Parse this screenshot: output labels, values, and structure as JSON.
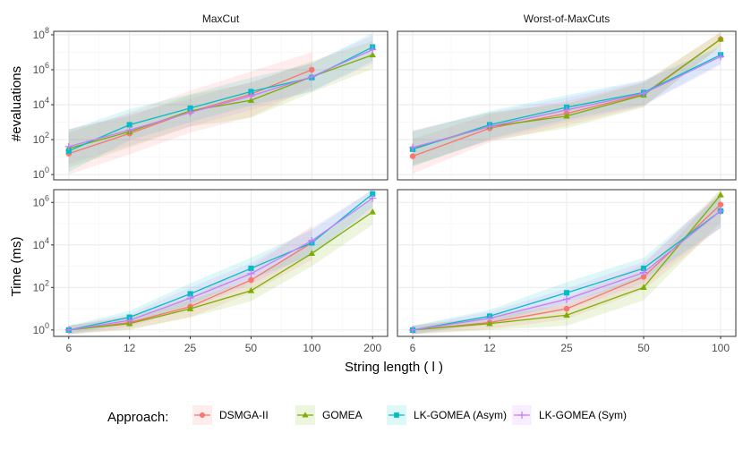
{
  "chart_data": {
    "type": "line",
    "x_axis_label": "String length ( l )",
    "panels": [
      {
        "row": 0,
        "col": 0,
        "facet": "MaxCut",
        "ylabel": "#evaluations",
        "x": [
          6,
          12,
          25,
          50,
          100,
          200
        ],
        "y_ticks": [
          {
            "v": 0,
            "label": "10",
            "exp": "0"
          },
          {
            "v": 2,
            "label": "10",
            "exp": "2"
          },
          {
            "v": 4,
            "label": "10",
            "exp": "4"
          },
          {
            "v": 6,
            "label": "10",
            "exp": "6"
          },
          {
            "v": 8,
            "label": "10",
            "exp": "8"
          }
        ],
        "ylim_log10": [
          -0.3,
          8.2
        ],
        "series": [
          {
            "name": "DSMGA-II",
            "log10": [
              1.2,
              2.35,
              3.6,
              4.6,
              6.0,
              null
            ],
            "band": [
              1.2,
              1.2,
              1.2,
              1.3,
              1.0,
              0
            ]
          },
          {
            "name": "GOMEA",
            "log10": [
              1.5,
              2.45,
              3.65,
              4.25,
              5.6,
              6.85
            ],
            "band": [
              1.1,
              0.9,
              0.9,
              1.0,
              0.9,
              0.8
            ]
          },
          {
            "name": "LK-GOMEA (Asym)",
            "log10": [
              1.35,
              2.85,
              3.8,
              4.75,
              5.55,
              7.3
            ],
            "band": [
              1.2,
              0.9,
              0.8,
              0.8,
              0.8,
              0.8
            ]
          },
          {
            "name": "LK-GOMEA (Sym)",
            "log10": [
              1.6,
              2.55,
              3.55,
              4.5,
              5.6,
              7.15
            ],
            "band": [
              1.0,
              0.9,
              0.8,
              0.8,
              0.8,
              0.8
            ]
          }
        ]
      },
      {
        "row": 0,
        "col": 1,
        "facet": "Worst-of-MaxCuts",
        "ylabel": "#evaluations",
        "x": [
          6,
          12,
          25,
          50,
          100
        ],
        "y_ticks": [],
        "ylim_log10": [
          -0.3,
          8.2
        ],
        "series": [
          {
            "name": "DSMGA-II",
            "log10": [
              1.05,
              2.65,
              3.5,
              4.6,
              7.75
            ],
            "band": [
              1.0,
              0.8,
              0.7,
              0.7,
              0.4
            ]
          },
          {
            "name": "GOMEA",
            "log10": [
              1.5,
              2.75,
              3.35,
              4.55,
              7.75
            ],
            "band": [
              1.0,
              0.8,
              0.7,
              0.7,
              0.4
            ]
          },
          {
            "name": "LK-GOMEA (Asym)",
            "log10": [
              1.45,
              2.85,
              3.85,
              4.7,
              6.85
            ],
            "band": [
              1.0,
              0.8,
              0.7,
              0.7,
              0.5
            ]
          },
          {
            "name": "LK-GOMEA (Sym)",
            "log10": [
              1.55,
              2.75,
              3.7,
              4.65,
              6.75
            ],
            "band": [
              1.0,
              0.8,
              0.7,
              0.7,
              0.5
            ]
          }
        ]
      },
      {
        "row": 1,
        "col": 0,
        "facet": "",
        "ylabel": "Time (ms)",
        "x": [
          6,
          12,
          25,
          50,
          100,
          200
        ],
        "y_ticks": [
          {
            "v": 0,
            "label": "10",
            "exp": "0"
          },
          {
            "v": 2,
            "label": "10",
            "exp": "2"
          },
          {
            "v": 4,
            "label": "10",
            "exp": "4"
          },
          {
            "v": 6,
            "label": "10",
            "exp": "6"
          }
        ],
        "ylim_log10": [
          -0.3,
          6.6
        ],
        "series": [
          {
            "name": "DSMGA-II",
            "log10": [
              0.0,
              0.35,
              1.1,
              2.35,
              4.1,
              null
            ],
            "band": [
              0.2,
              0.3,
              0.5,
              0.6,
              0.8,
              0
            ]
          },
          {
            "name": "GOMEA",
            "log10": [
              0.0,
              0.3,
              1.0,
              1.85,
              3.6,
              5.55
            ],
            "band": [
              0.2,
              0.3,
              0.4,
              0.5,
              0.6,
              0.6
            ]
          },
          {
            "name": "LK-GOMEA (Asym)",
            "log10": [
              0.0,
              0.6,
              1.7,
              2.9,
              4.1,
              6.4
            ],
            "band": [
              0.2,
              0.3,
              0.5,
              0.5,
              0.6,
              0.6
            ]
          },
          {
            "name": "LK-GOMEA (Sym)",
            "log10": [
              0.0,
              0.45,
              1.5,
              2.65,
              4.2,
              6.2
            ],
            "band": [
              0.2,
              0.3,
              0.5,
              0.5,
              0.6,
              0.6
            ]
          }
        ]
      },
      {
        "row": 1,
        "col": 1,
        "facet": "",
        "ylabel": "Time (ms)",
        "x": [
          6,
          12,
          25,
          50,
          100
        ],
        "y_ticks": [],
        "ylim_log10": [
          -0.3,
          6.6
        ],
        "series": [
          {
            "name": "DSMGA-II",
            "log10": [
              0.0,
              0.35,
              1.0,
              2.5,
              5.9
            ],
            "band": [
              0.2,
              0.3,
              0.5,
              0.6,
              1.1
            ]
          },
          {
            "name": "GOMEA",
            "log10": [
              0.0,
              0.3,
              0.7,
              2.0,
              6.35
            ],
            "band": [
              0.2,
              0.3,
              0.5,
              0.6,
              1.3
            ]
          },
          {
            "name": "LK-GOMEA (Asym)",
            "log10": [
              0.0,
              0.65,
              1.75,
              2.9,
              5.6
            ],
            "band": [
              0.2,
              0.3,
              0.5,
              0.5,
              0.8
            ]
          },
          {
            "name": "LK-GOMEA (Sym)",
            "log10": [
              0.0,
              0.55,
              1.45,
              2.7,
              5.6
            ],
            "band": [
              0.2,
              0.3,
              0.5,
              0.5,
              0.8
            ]
          }
        ]
      }
    ],
    "legend": {
      "title": "Approach:",
      "position": "bottom",
      "entries": [
        {
          "name": "DSMGA-II",
          "color": "#F8766D",
          "shape": "circle"
        },
        {
          "name": "GOMEA",
          "color": "#7CAE00",
          "shape": "triangle"
        },
        {
          "name": "LK-GOMEA (Asym)",
          "color": "#00BFC4",
          "shape": "square"
        },
        {
          "name": "LK-GOMEA (Sym)",
          "color": "#C77CFF",
          "shape": "plus"
        }
      ]
    }
  }
}
